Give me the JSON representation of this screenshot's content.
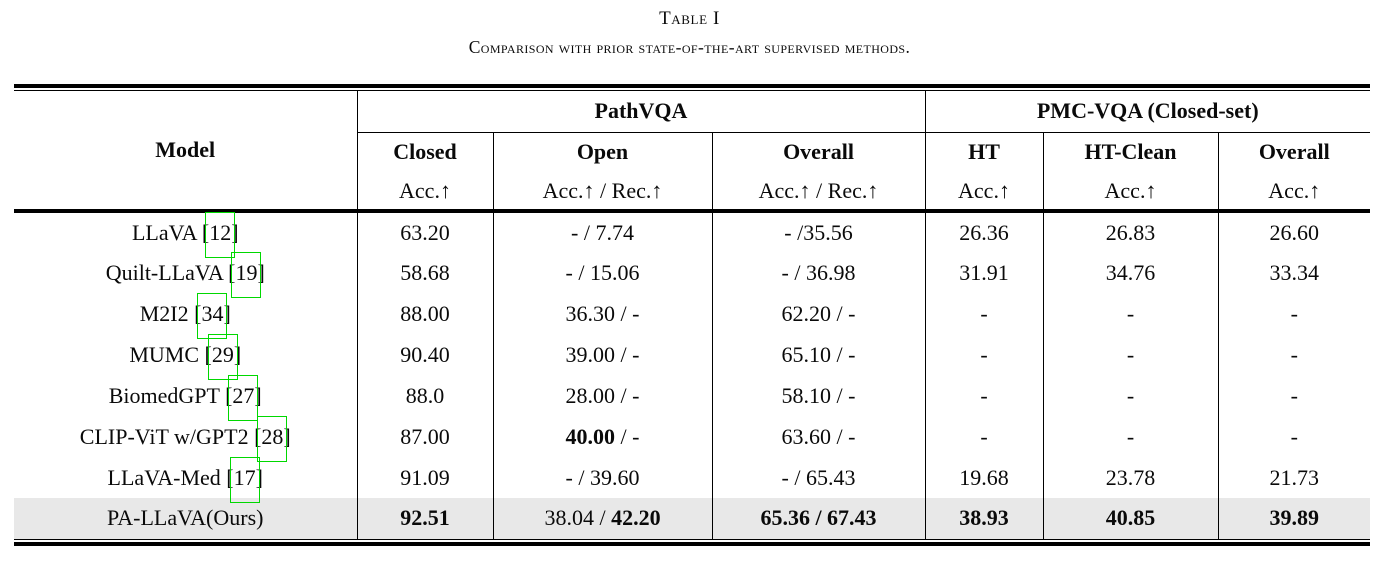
{
  "caption": {
    "number": "Table I",
    "text": "Comparison with prior state-of-the-art supervised methods."
  },
  "colors": {
    "link_box_green": "#00d800",
    "highlight_row": "#e8e8e8",
    "rule_black": "#000000"
  },
  "table": {
    "header": {
      "model": "Model",
      "groups": [
        {
          "label": "PathVQA",
          "cols": [
            {
              "label": "Closed",
              "metric": "Acc.↑"
            },
            {
              "label": "Open",
              "metric": "Acc.↑ / Rec.↑"
            },
            {
              "label": "Overall",
              "metric": "Acc.↑ / Rec.↑"
            }
          ]
        },
        {
          "label": "PMC-VQA (Closed-set)",
          "cols": [
            {
              "label": "HT",
              "metric": "Acc.↑"
            },
            {
              "label": "HT-Clean",
              "metric": "Acc.↑"
            },
            {
              "label": "Overall",
              "metric": "Acc.↑"
            }
          ]
        }
      ]
    },
    "rows": [
      {
        "model_prefix": "LLaVA [",
        "cite": "12",
        "model_suffix": "]",
        "highlight": false,
        "cells": [
          [
            [
              "63.20",
              false
            ]
          ],
          [
            [
              "- / 7.74",
              false
            ]
          ],
          [
            [
              "- /35.56",
              false
            ]
          ],
          [
            [
              "26.36",
              false
            ]
          ],
          [
            [
              "26.83",
              false
            ]
          ],
          [
            [
              "26.60",
              false
            ]
          ]
        ]
      },
      {
        "model_prefix": "Quilt-LLaVA [",
        "cite": "19",
        "model_suffix": "]",
        "highlight": false,
        "cells": [
          [
            [
              "58.68",
              false
            ]
          ],
          [
            [
              "- / 15.06",
              false
            ]
          ],
          [
            [
              "- / 36.98",
              false
            ]
          ],
          [
            [
              "31.91",
              false
            ]
          ],
          [
            [
              "34.76",
              false
            ]
          ],
          [
            [
              "33.34",
              false
            ]
          ]
        ]
      },
      {
        "model_prefix": "M2I2 [",
        "cite": "34",
        "model_suffix": "]",
        "highlight": false,
        "cells": [
          [
            [
              "88.00",
              false
            ]
          ],
          [
            [
              "36.30 / -",
              false
            ]
          ],
          [
            [
              "62.20 / -",
              false
            ]
          ],
          [
            [
              "-",
              false
            ]
          ],
          [
            [
              "-",
              false
            ]
          ],
          [
            [
              "-",
              false
            ]
          ]
        ]
      },
      {
        "model_prefix": "MUMC [",
        "cite": "29",
        "model_suffix": "]",
        "highlight": false,
        "cells": [
          [
            [
              "90.40",
              false
            ]
          ],
          [
            [
              "39.00 / -",
              false
            ]
          ],
          [
            [
              "65.10 / -",
              false
            ]
          ],
          [
            [
              "-",
              false
            ]
          ],
          [
            [
              "-",
              false
            ]
          ],
          [
            [
              "-",
              false
            ]
          ]
        ]
      },
      {
        "model_prefix": "BiomedGPT [",
        "cite": "27",
        "model_suffix": "]",
        "highlight": false,
        "cells": [
          [
            [
              "88.0",
              false
            ]
          ],
          [
            [
              "28.00 / -",
              false
            ]
          ],
          [
            [
              "58.10 / -",
              false
            ]
          ],
          [
            [
              "-",
              false
            ]
          ],
          [
            [
              "-",
              false
            ]
          ],
          [
            [
              "-",
              false
            ]
          ]
        ]
      },
      {
        "model_prefix": "CLIP-ViT w/GPT2 [",
        "cite": "28",
        "model_suffix": "]",
        "highlight": false,
        "cells": [
          [
            [
              "87.00",
              false
            ]
          ],
          [
            [
              "40.00",
              true
            ],
            [
              " / -",
              false
            ]
          ],
          [
            [
              "63.60 / -",
              false
            ]
          ],
          [
            [
              "-",
              false
            ]
          ],
          [
            [
              "-",
              false
            ]
          ],
          [
            [
              "-",
              false
            ]
          ]
        ]
      },
      {
        "model_prefix": "LLaVA-Med [",
        "cite": "17",
        "model_suffix": "]",
        "highlight": false,
        "cells": [
          [
            [
              "91.09",
              false
            ]
          ],
          [
            [
              "- / 39.60",
              false
            ]
          ],
          [
            [
              "- / 65.43",
              false
            ]
          ],
          [
            [
              "19.68",
              false
            ]
          ],
          [
            [
              "23.78",
              false
            ]
          ],
          [
            [
              "21.73",
              false
            ]
          ]
        ]
      },
      {
        "model_prefix": "PA-LLaVA(Ours)",
        "cite": null,
        "model_suffix": "",
        "highlight": true,
        "cells": [
          [
            [
              "92.51",
              true
            ]
          ],
          [
            [
              "38.04 / ",
              false
            ],
            [
              "42.20",
              true
            ]
          ],
          [
            [
              "65.36 / 67.43",
              true
            ]
          ],
          [
            [
              "38.93",
              true
            ]
          ],
          [
            [
              "40.85",
              true
            ]
          ],
          [
            [
              "39.89",
              true
            ]
          ]
        ]
      }
    ]
  }
}
